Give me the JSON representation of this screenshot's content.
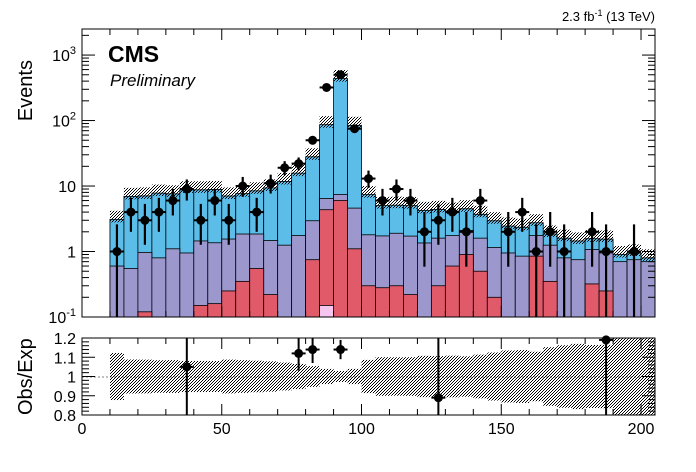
{
  "header": {
    "lumi_prefix": "2.3 fb",
    "lumi_sup": "-1",
    "lumi_suffix": " (13 TeV)"
  },
  "cms": {
    "label": "CMS",
    "sublabel": "Preliminary"
  },
  "colors": {
    "dominant": "#5bbde8",
    "second": "#9c98cd",
    "third": "#e05a6a",
    "fourth": "#f5c6f0",
    "data": "#000000"
  },
  "chart_data": [
    {
      "type": "histogram",
      "ylabel": "Events",
      "yscale": "log",
      "ylim": [
        0.1,
        2500
      ],
      "xlim": [
        0,
        205
      ],
      "yticks": [
        {
          "value": 0.1,
          "base": "10",
          "exp": "-1"
        },
        {
          "value": 1,
          "text": "1"
        },
        {
          "value": 10,
          "text": "10"
        },
        {
          "value": 100,
          "base": "10",
          "exp": "2"
        },
        {
          "value": 1000,
          "base": "10",
          "exp": "3"
        }
      ],
      "bin_width": 5,
      "bin_low": [
        10,
        15,
        20,
        25,
        30,
        35,
        40,
        45,
        50,
        55,
        60,
        65,
        70,
        75,
        80,
        85,
        90,
        95,
        100,
        105,
        110,
        115,
        120,
        125,
        130,
        135,
        140,
        145,
        150,
        155,
        160,
        165,
        170,
        175,
        180,
        185,
        190,
        195,
        200
      ],
      "stack": [
        {
          "color": "#f5c6f0",
          "values": [
            0,
            0,
            0,
            0,
            0,
            0,
            0,
            0,
            0,
            0,
            0,
            0,
            0,
            0,
            0,
            0.15,
            0,
            0,
            0,
            0,
            0,
            0,
            0,
            0,
            0,
            0,
            0,
            0,
            0,
            0,
            0,
            0,
            0,
            0,
            0,
            0,
            0,
            0,
            0
          ]
        },
        {
          "color": "#e05a6a",
          "values": [
            0,
            0,
            0.12,
            0,
            0,
            0,
            0.15,
            0.16,
            0.25,
            0.35,
            0.55,
            0.22,
            0,
            0,
            0.75,
            4.2,
            6,
            1.1,
            0.3,
            0.28,
            0.3,
            0.22,
            0,
            0.3,
            0.6,
            0.9,
            0.5,
            0.2,
            0,
            0,
            0.85,
            0.35,
            0,
            0,
            0.32,
            0.25,
            0,
            0,
            0
          ]
        },
        {
          "color": "#9c98cd",
          "values": [
            0.6,
            0.55,
            0.85,
            0.8,
            1.1,
            0.95,
            1.3,
            1.2,
            1.3,
            1.5,
            1.3,
            1.25,
            1.25,
            1.75,
            2.2,
            2.1,
            1.4,
            3.5,
            1.5,
            1.45,
            1.6,
            1.5,
            1.35,
            1.3,
            1.15,
            1.2,
            1.1,
            0.95,
            0.95,
            0.85,
            0.9,
            0.9,
            0.8,
            0.75,
            0.75,
            0.7,
            0.7,
            0.75,
            0.7
          ]
        },
        {
          "color": "#5bbde8",
          "values": [
            2.5,
            6.4,
            6.1,
            7.0,
            6.5,
            7.8,
            7.3,
            7.5,
            5.5,
            5.8,
            6.6,
            7.9,
            10.5,
            14,
            25,
            80,
            430,
            80,
            5.6,
            3.3,
            3.2,
            3.3,
            2.9,
            2.8,
            2.4,
            2.4,
            2.1,
            1.8,
            1.5,
            1.5,
            1.0,
            0.6,
            0.8,
            0.7,
            0.5,
            0.6,
            0.2,
            0.2,
            0.1
          ]
        }
      ],
      "data_points": [
        {
          "x": 12.5,
          "y": 1
        },
        {
          "x": 17.5,
          "y": 4
        },
        {
          "x": 22.5,
          "y": 3
        },
        {
          "x": 27.5,
          "y": 4
        },
        {
          "x": 32.5,
          "y": 6
        },
        {
          "x": 37.5,
          "y": 9
        },
        {
          "x": 42.5,
          "y": 3
        },
        {
          "x": 47.5,
          "y": 6
        },
        {
          "x": 52.5,
          "y": 3
        },
        {
          "x": 57.5,
          "y": 10
        },
        {
          "x": 62.5,
          "y": 4
        },
        {
          "x": 67.5,
          "y": 11
        },
        {
          "x": 72.5,
          "y": 19
        },
        {
          "x": 77.5,
          "y": 22
        },
        {
          "x": 82.5,
          "y": 50
        },
        {
          "x": 87.5,
          "y": 320
        },
        {
          "x": 92.5,
          "y": 500
        },
        {
          "x": 97.5,
          "y": 75
        },
        {
          "x": 102.5,
          "y": 13
        },
        {
          "x": 107.5,
          "y": 6
        },
        {
          "x": 112.5,
          "y": 9
        },
        {
          "x": 117.5,
          "y": 6
        },
        {
          "x": 122.5,
          "y": 2
        },
        {
          "x": 127.5,
          "y": 3
        },
        {
          "x": 132.5,
          "y": 4
        },
        {
          "x": 137.5,
          "y": 2
        },
        {
          "x": 142.5,
          "y": 6
        },
        {
          "x": 152.5,
          "y": 2
        },
        {
          "x": 157.5,
          "y": 4
        },
        {
          "x": 162.5,
          "y": 1
        },
        {
          "x": 167.5,
          "y": 2
        },
        {
          "x": 172.5,
          "y": 1
        },
        {
          "x": 182.5,
          "y": 2
        },
        {
          "x": 187.5,
          "y": 1
        },
        {
          "x": 197.5,
          "y": 1
        }
      ]
    },
    {
      "type": "ratio",
      "ylabel": "Obs/Exp",
      "ylim": [
        0.8,
        1.2
      ],
      "xlim": [
        0,
        205
      ],
      "yticks": [
        0.8,
        0.9,
        1,
        1.1,
        1.2
      ],
      "ytick_labels": [
        "0.8",
        "0.9",
        "1",
        "1.1",
        "1.2"
      ],
      "xticks": [
        0,
        50,
        100,
        150,
        200
      ],
      "xtick_labels": [
        "0",
        "50",
        "100",
        "150",
        "200"
      ],
      "points": [
        {
          "x": 37.5,
          "y": 1.05,
          "err": 0.35
        },
        {
          "x": 77.5,
          "y": 1.12,
          "err": 0.09
        },
        {
          "x": 82.5,
          "y": 1.14,
          "err": 0.07
        },
        {
          "x": 92.5,
          "y": 1.14,
          "err": 0.05
        },
        {
          "x": 127.5,
          "y": 0.89,
          "err": 0.4
        },
        {
          "x": 187.5,
          "y": 1.19,
          "err": 0.4
        }
      ]
    }
  ]
}
